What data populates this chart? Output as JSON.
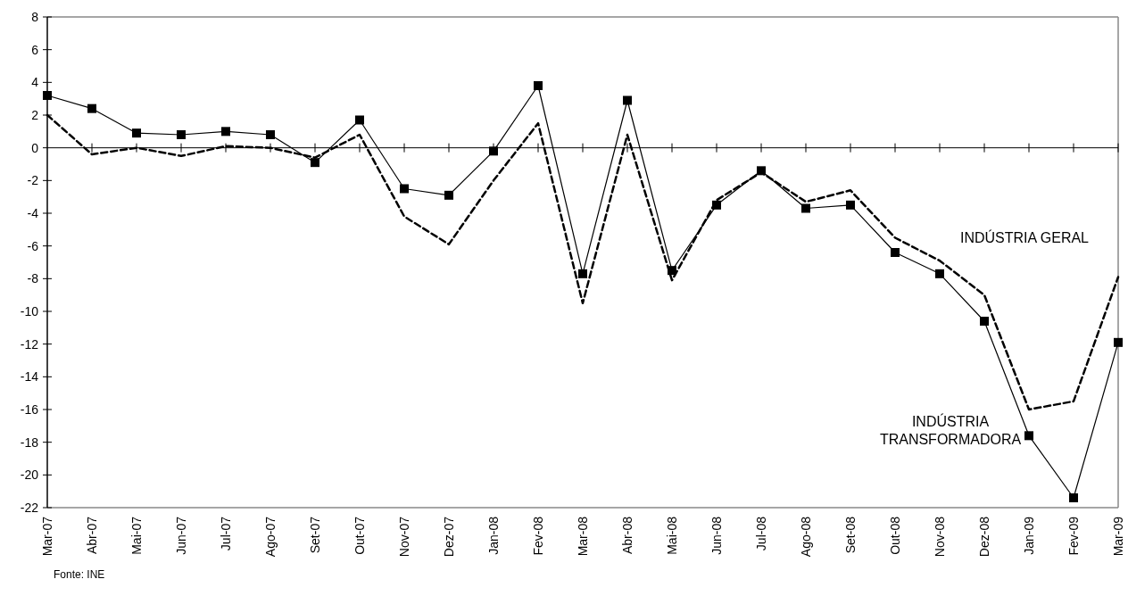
{
  "chart_data": {
    "type": "line",
    "categories": [
      "Mar-07",
      "Abr-07",
      "Mai-07",
      "Jun-07",
      "Jul-07",
      "Ago-07",
      "Set-07",
      "Out-07",
      "Nov-07",
      "Dez-07",
      "Jan-08",
      "Fev-08",
      "Mar-08",
      "Abr-08",
      "Mai-08",
      "Jun-08",
      "Jul-08",
      "Ago-08",
      "Set-08",
      "Out-08",
      "Nov-08",
      "Dez-08",
      "Jan-09",
      "Fev-09",
      "Mar-09"
    ],
    "series": [
      {
        "name": "INDÚSTRIA GERAL",
        "color": "#000000",
        "line_style": "dashed",
        "marker": "none",
        "values": [
          2.0,
          -0.4,
          0.0,
          -0.5,
          0.1,
          0.0,
          -0.6,
          0.8,
          -4.2,
          -5.9,
          -2.0,
          1.5,
          -9.5,
          0.8,
          -8.1,
          -3.2,
          -1.5,
          -3.3,
          -2.6,
          -5.5,
          -6.9,
          -9.0,
          -16.0,
          -15.5,
          -7.9
        ]
      },
      {
        "name": "INDÚSTRIA TRANSFORMADORA",
        "color": "#000000",
        "line_style": "solid",
        "marker": "square",
        "values": [
          3.2,
          2.4,
          0.9,
          0.8,
          1.0,
          0.8,
          -0.9,
          1.7,
          -2.5,
          -2.9,
          -0.2,
          3.8,
          -7.7,
          2.9,
          -7.5,
          -3.5,
          -1.4,
          -3.7,
          -3.5,
          -6.4,
          -7.7,
          -10.6,
          -17.6,
          -21.4,
          -11.9
        ]
      }
    ],
    "ylim": [
      -22,
      8
    ],
    "yticks": [
      8,
      6,
      4,
      2,
      0,
      -2,
      -4,
      -6,
      -8,
      -10,
      -12,
      -14,
      -16,
      -18,
      -20,
      -22
    ],
    "annotations": [
      "Fonte: INE"
    ]
  }
}
